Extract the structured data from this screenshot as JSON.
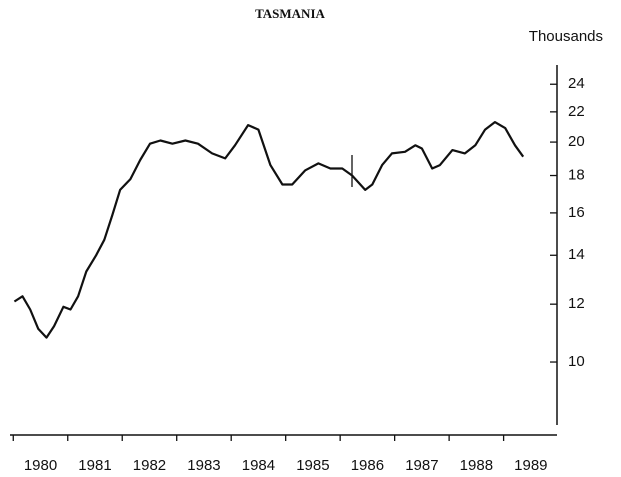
{
  "chart_data": {
    "type": "line",
    "title": "TASMANIA",
    "y_label": "Thousands",
    "log_scale": true,
    "color": "#111111",
    "x": [
      1980.02,
      1980.17,
      1980.31,
      1980.46,
      1980.61,
      1980.75,
      1980.92,
      1981.05,
      1981.19,
      1981.34,
      1981.52,
      1981.67,
      1981.82,
      1981.96,
      1982.15,
      1982.33,
      1982.51,
      1982.7,
      1982.92,
      1983.16,
      1983.39,
      1983.65,
      1983.89,
      1984.07,
      1984.31,
      1984.5,
      1984.72,
      1984.94,
      1985.12,
      1985.36,
      1985.6,
      1985.82,
      1986.04,
      1986.22,
      1986.46,
      1986.59,
      1986.77,
      1986.95,
      1987.19,
      1987.38,
      1987.5,
      1987.69,
      1987.83,
      1988.06,
      1988.29,
      1988.48,
      1988.66,
      1988.84,
      1989.03,
      1989.21,
      1989.36
    ],
    "values": [
      12.1,
      12.3,
      11.8,
      11.1,
      10.8,
      11.2,
      11.9,
      11.8,
      12.3,
      13.3,
      14.0,
      14.7,
      15.9,
      17.2,
      17.8,
      18.9,
      19.9,
      20.1,
      19.9,
      20.1,
      19.9,
      19.3,
      19.0,
      19.8,
      21.1,
      20.8,
      18.6,
      17.5,
      17.5,
      18.3,
      18.7,
      18.4,
      18.4,
      18.0,
      17.2,
      17.5,
      18.6,
      19.3,
      19.4,
      19.8,
      19.6,
      18.4,
      18.6,
      19.5,
      19.3,
      19.8,
      20.8,
      21.3,
      20.9,
      19.8,
      19.1
    ],
    "xlim": [
      1979.94,
      1989.98
    ],
    "xticks": [
      1980,
      1981,
      1982,
      1983,
      1984,
      1985,
      1986,
      1987,
      1988,
      1989
    ],
    "ylim": [
      8.2,
      25.5
    ],
    "yticks": [
      10,
      12,
      14,
      16,
      18,
      20,
      22,
      24
    ]
  }
}
